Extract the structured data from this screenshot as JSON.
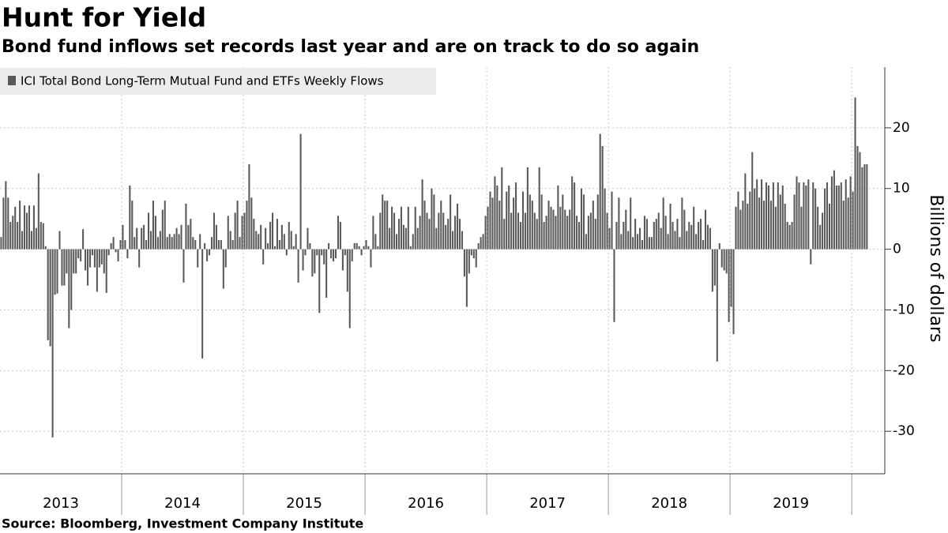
{
  "chart_data": {
    "type": "bar",
    "title": "Hunt for Yield",
    "subtitle": "Bond fund inflows set records last year and are on track to do so again",
    "source": "Source: Bloomberg, Investment Company Institute",
    "y_label": "Billions of dollars",
    "legend_label": "ICI Total Bond Long-Term Mutual Fund and ETFs Weekly Flows",
    "color": "#595959",
    "x_labels": [
      "2013",
      "2014",
      "2015",
      "2016",
      "2017",
      "2018",
      "2019"
    ],
    "ylim": [
      -37,
      30
    ],
    "yticks": [
      -30,
      -20,
      -10,
      0,
      10,
      20
    ],
    "grid": true,
    "values": [
      2,
      8.5,
      11.2,
      8.5,
      4.5,
      5.5,
      7,
      4.5,
      8,
      3,
      7.2,
      6,
      7.2,
      3,
      7.2,
      3.5,
      12.5,
      4.5,
      4.3,
      0.5,
      -15,
      -16,
      -31,
      -7.5,
      -7.3,
      3,
      -6,
      -6,
      -4,
      -13,
      -10,
      -4,
      -4,
      -1.5,
      -2,
      3.3,
      -3.5,
      -6,
      -3,
      -1,
      -3,
      -7,
      -3,
      -2.5,
      -4,
      -7.2,
      -1,
      1,
      2,
      -0.5,
      -2,
      1.5,
      4,
      1.5,
      -1.5,
      10.5,
      8,
      2,
      3.5,
      -3,
      3.5,
      4,
      1.5,
      6,
      3,
      8,
      5.5,
      2,
      3,
      6.5,
      8,
      2,
      2.5,
      2,
      2.5,
      3.5,
      2.5,
      4,
      -5.5,
      7.5,
      4,
      5,
      2,
      1.5,
      -3,
      2.5,
      -18,
      1,
      -2,
      -1,
      2,
      6,
      4,
      1.5,
      1.5,
      -6.5,
      -3,
      5.5,
      3,
      1.5,
      6,
      8,
      2,
      5.5,
      6,
      8,
      14,
      8.5,
      5,
      3,
      2.5,
      4,
      -2.5,
      3.5,
      1,
      4.5,
      6,
      0.5,
      5,
      1.5,
      4,
      2.5,
      -1,
      4.5,
      3,
      0.5,
      2.5,
      -5.5,
      19,
      -3.5,
      -1,
      3.5,
      1,
      -4.5,
      -4,
      -1,
      -10.5,
      -1,
      -2.5,
      -8,
      1,
      -1.5,
      -2,
      -1.5,
      5.5,
      4.5,
      -3.5,
      -1,
      -7,
      -13,
      -2,
      1,
      1,
      0.5,
      -1,
      0.5,
      1.5,
      0.5,
      -3,
      5.5,
      2.5,
      0.5,
      6,
      9,
      8,
      8,
      3.5,
      7,
      6,
      2.5,
      5,
      7,
      4,
      3.5,
      7,
      0.5,
      2.5,
      7,
      3.5,
      5.5,
      11.5,
      8,
      6,
      5,
      10,
      9,
      3.5,
      6,
      8,
      6,
      4,
      5,
      9,
      3,
      5.5,
      7.5,
      5,
      3,
      -4.5,
      -9.5,
      -4,
      -1,
      -1.5,
      -3,
      1,
      2,
      2.5,
      5.5,
      7,
      9.5,
      8.5,
      12,
      10.5,
      8,
      13.5,
      5,
      9.5,
      10.5,
      6,
      8.5,
      11,
      6,
      4.5,
      9.5,
      6,
      13.5,
      9,
      8,
      6,
      5,
      13.5,
      9,
      4.5,
      5.5,
      8,
      7,
      6.5,
      5.5,
      10.5,
      7,
      9,
      6.5,
      5.5,
      6.5,
      12,
      11,
      5.5,
      4.5,
      10,
      9,
      2.5,
      5.5,
      6,
      8,
      5,
      9,
      19,
      17,
      10,
      6,
      3.5,
      9.5,
      -12,
      4.5,
      8.5,
      2.5,
      4.5,
      6.5,
      3,
      8.5,
      2,
      5,
      2.5,
      3.5,
      1.5,
      5.5,
      5,
      2,
      2,
      4.5,
      5,
      6,
      3.5,
      8.5,
      5.5,
      2.5,
      7.5,
      4.5,
      3,
      5,
      2,
      8.5,
      6.5,
      3,
      4.5,
      4,
      7,
      2.5,
      4.5,
      5,
      1.5,
      6.5,
      4,
      3.5,
      -7,
      -6,
      -18.5,
      1,
      -3,
      -3.5,
      -4,
      -12,
      -9.5,
      -14,
      7,
      9.5,
      6.5,
      8,
      12.5,
      7.5,
      9.5,
      16,
      10,
      11.5,
      8.5,
      11.5,
      8,
      11,
      10.5,
      8,
      11,
      7,
      11,
      9,
      10.5,
      7.5,
      4.5,
      4,
      4.5,
      9,
      12,
      11,
      7,
      11,
      10.5,
      11.5,
      -2.5,
      11,
      10,
      7,
      4,
      6,
      10,
      11,
      7.5,
      12,
      13,
      10.5,
      10.5,
      11,
      8,
      11.5,
      8.5,
      12,
      9.5,
      25,
      17,
      16,
      13.5,
      14,
      14
    ]
  }
}
